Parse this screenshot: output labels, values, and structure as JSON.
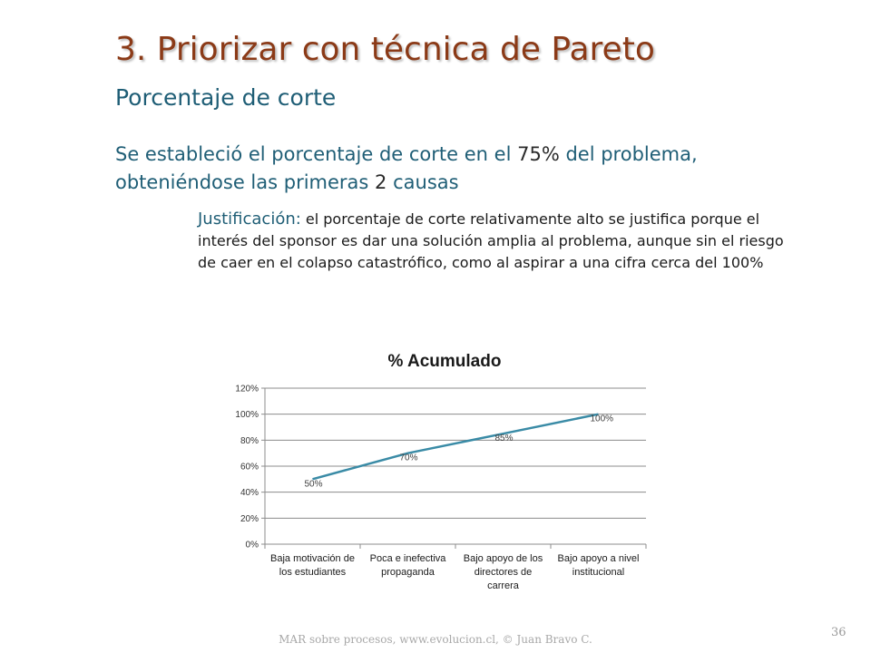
{
  "slide": {
    "title": "3. Priorizar con técnica de Pareto",
    "subtitle": "Porcentaje de corte",
    "main_text": {
      "part1": "Se estableció el porcentaje de corte en el ",
      "pct": "75%",
      "part2": " del problema, obteniéndose las primeras ",
      "count": "2",
      "part3": " causas"
    },
    "justification": {
      "label": "Justificación:",
      "text": " el porcentaje de corte relativamente alto se justifica porque el interés del sponsor es dar una solución amplia al problema, aunque sin el riesgo de caer en el colapso catastrófico, como al aspirar a una cifra cerca del 100%"
    },
    "footer": "MAR sobre procesos, www.evolucion.cl, © Juan Bravo C.",
    "page_number": "36"
  },
  "colors": {
    "title": "#8b3a17",
    "subtitle": "#1f5e76",
    "line": "#3a8ba6",
    "grid": "#8c8c8c"
  },
  "chart_data": {
    "type": "line",
    "title": "% Acumulado",
    "categories": [
      "Baja motivación de los estudiantes",
      "Poca e inefectiva propaganda",
      "Bajo apoyo de los directores de carrera",
      "Bajo apoyo a nivel institucional"
    ],
    "category_lines": [
      [
        "Baja motivación de",
        "los estudiantes"
      ],
      [
        "Poca e inefectiva",
        "propaganda"
      ],
      [
        "Bajo apoyo de los",
        "directores de",
        "carrera"
      ],
      [
        "Bajo apoyo a nivel",
        "institucional"
      ]
    ],
    "series": [
      {
        "values": [
          0.5,
          0.7,
          0.85,
          1.0
        ],
        "labels": [
          "50%",
          "70%",
          "85%",
          "100%"
        ]
      }
    ],
    "ylim": [
      0,
      1.2
    ],
    "yticks": [
      0,
      0.2,
      0.4,
      0.6,
      0.8,
      1.0,
      1.2
    ],
    "ytick_labels": [
      "0%",
      "20%",
      "40%",
      "60%",
      "80%",
      "100%",
      "120%"
    ],
    "grid": true,
    "legend": "none"
  }
}
